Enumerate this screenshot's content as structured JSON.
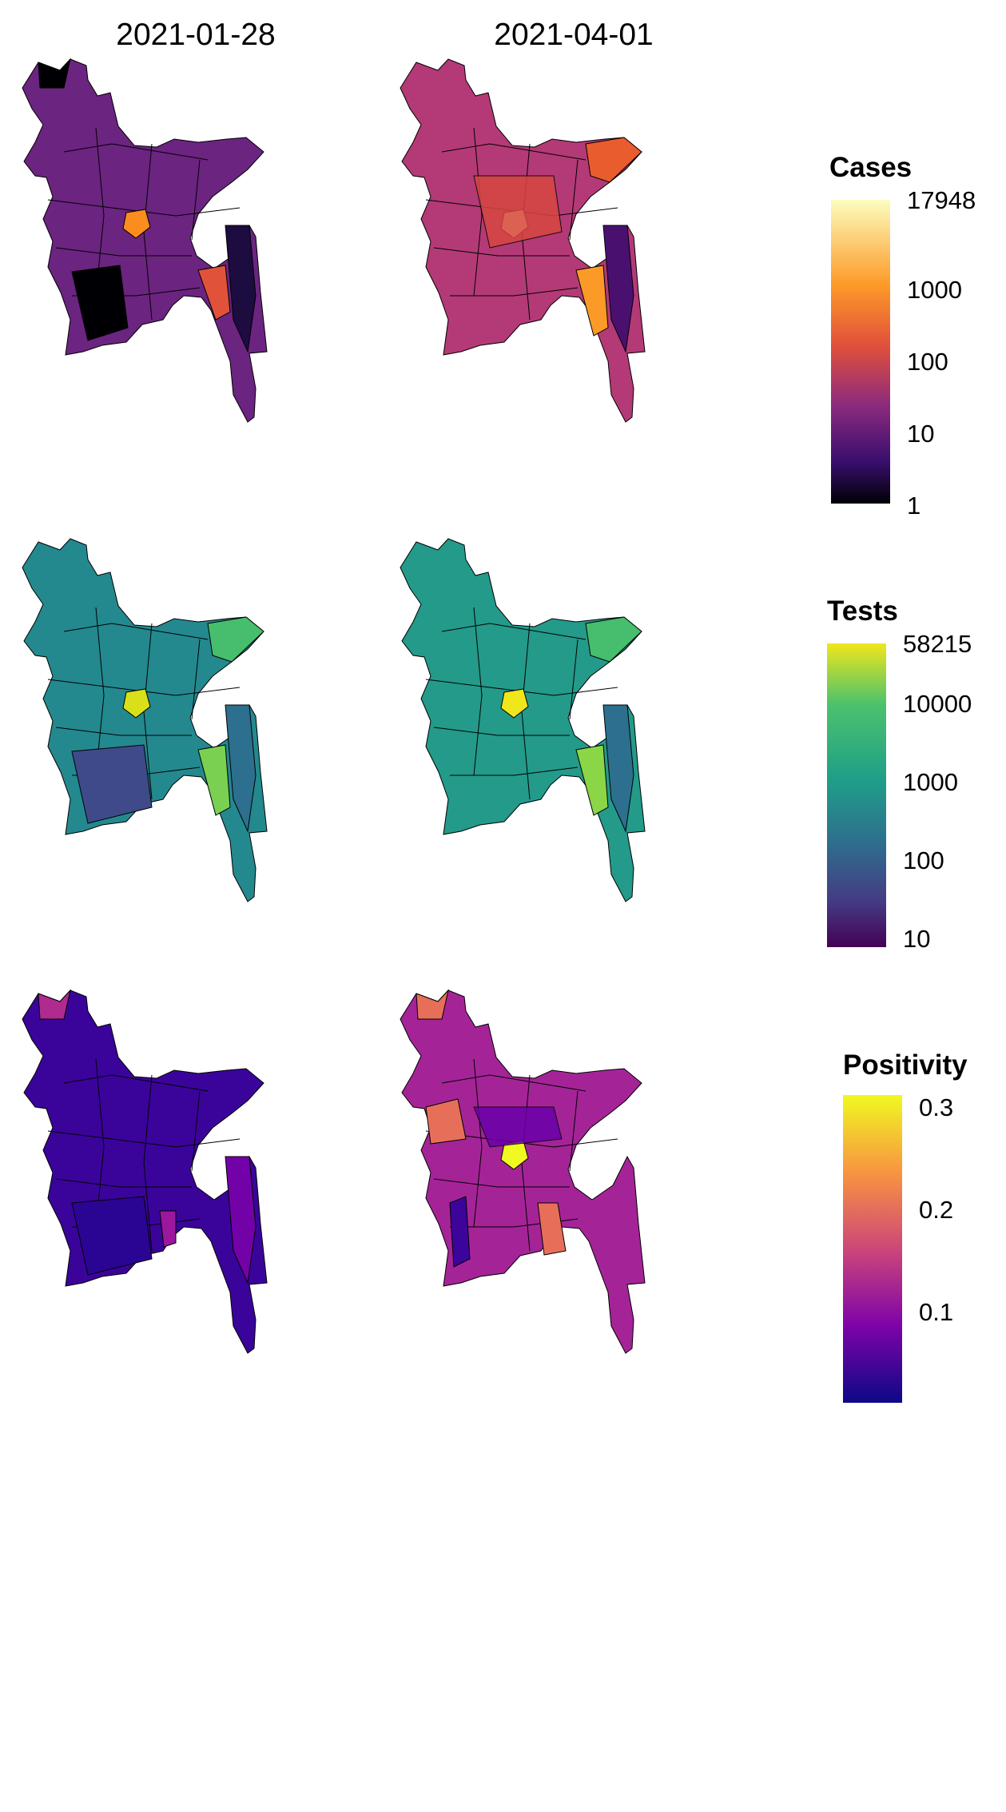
{
  "columns": [
    "2021-01-28",
    "2021-04-01"
  ],
  "legends": [
    {
      "title": "Cases",
      "scale": "log",
      "ticks": [
        "17948",
        "1000",
        "100",
        "10",
        "1"
      ],
      "colors": [
        "#fcfdbf",
        "#fd9a28",
        "#e1503b",
        "#8a2a7e",
        "#3a0f6e",
        "#000004"
      ]
    },
    {
      "title": "Tests",
      "scale": "log",
      "ticks": [
        "58215",
        "10000",
        "1000",
        "100",
        "10"
      ],
      "colors": [
        "#f0e61c",
        "#4cc26c",
        "#1f9e89",
        "#2d708e",
        "#443b84",
        "#440154"
      ]
    },
    {
      "title": "Positivity",
      "scale": "linear",
      "ticks": [
        "0.3",
        "0.2",
        "0.1"
      ],
      "colors": [
        "#f0f921",
        "#f89540",
        "#cc4778",
        "#7e03a8",
        "#0d0887"
      ]
    }
  ],
  "maps": [
    {
      "row": "cases",
      "date": "2021-01-28",
      "base": "#7a2a80",
      "hot": "#fb8d1e"
    },
    {
      "row": "cases",
      "date": "2021-04-01",
      "base": "#b73779",
      "hot": "#fcfdbf"
    },
    {
      "row": "tests",
      "date": "2021-01-28",
      "base": "#2a7d8e",
      "hot": "#d9e019"
    },
    {
      "row": "tests",
      "date": "2021-04-01",
      "base": "#24878e",
      "hot": "#f0e61c"
    },
    {
      "row": "positivity",
      "date": "2021-01-28",
      "base": "#4b03a0",
      "hot": "#8a0aa5"
    },
    {
      "row": "positivity",
      "date": "2021-04-01",
      "base": "#a42497",
      "hot": "#f0f921"
    }
  ]
}
